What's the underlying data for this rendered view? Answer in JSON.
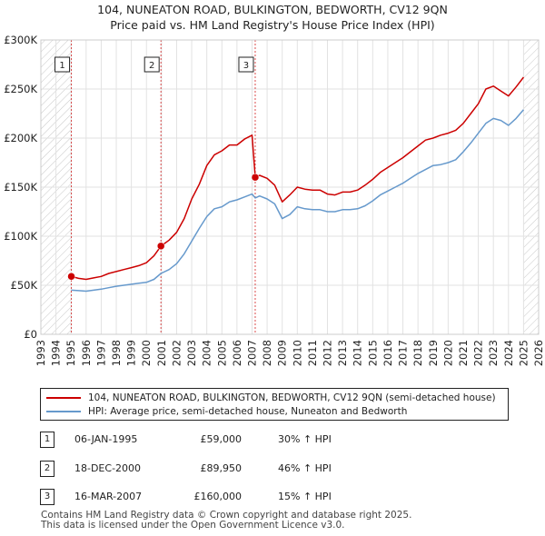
{
  "title": {
    "line1": "104, NUNEATON ROAD, BULKINGTON, BEDWORTH, CV12 9QN",
    "line2": "Price paid vs. HM Land Registry's House Price Index (HPI)"
  },
  "chart_data": {
    "type": "line",
    "title": "Price paid vs. HM Land Registry's House Price Index (HPI)",
    "xlabel": "",
    "ylabel": "",
    "xlim": [
      1993,
      2026
    ],
    "ylim": [
      0,
      300000
    ],
    "x_ticks": [
      "1993",
      "1994",
      "1995",
      "1996",
      "1997",
      "1998",
      "1999",
      "2000",
      "2001",
      "2002",
      "2003",
      "2004",
      "2005",
      "2006",
      "2007",
      "2008",
      "2009",
      "2010",
      "2011",
      "2012",
      "2013",
      "2014",
      "2015",
      "2016",
      "2017",
      "2018",
      "2019",
      "2020",
      "2021",
      "2022",
      "2023",
      "2024",
      "2025",
      "2026"
    ],
    "y_ticks": [
      {
        "value": 0,
        "label": "£0"
      },
      {
        "value": 50000,
        "label": "£50K"
      },
      {
        "value": 100000,
        "label": "£100K"
      },
      {
        "value": 150000,
        "label": "£150K"
      },
      {
        "value": 200000,
        "label": "£200K"
      },
      {
        "value": 250000,
        "label": "£250K"
      },
      {
        "value": 300000,
        "label": "£300K"
      }
    ],
    "grid": true,
    "hatched_ranges": [
      [
        1993,
        1995.02
      ],
      [
        2025.0,
        2026
      ]
    ],
    "series": [
      {
        "name": "104, NUNEATON ROAD, BULKINGTON, BEDWORTH, CV12 9QN (semi-detached house)",
        "color": "#cc0000",
        "x": [
          1995.02,
          1995.5,
          1996,
          1996.5,
          1997,
          1997.5,
          1998,
          1998.5,
          1999,
          1999.5,
          2000,
          2000.5,
          2000.96,
          2001.5,
          2002,
          2002.5,
          2003,
          2003.5,
          2004,
          2004.5,
          2005,
          2005.5,
          2006,
          2006.5,
          2007.0,
          2007.21,
          2007.5,
          2008,
          2008.5,
          2009,
          2009.5,
          2010,
          2010.5,
          2011,
          2011.5,
          2012,
          2012.5,
          2013,
          2013.5,
          2014,
          2014.5,
          2015,
          2015.5,
          2016,
          2016.5,
          2017,
          2017.5,
          2018,
          2018.5,
          2019,
          2019.5,
          2020,
          2020.5,
          2021,
          2021.5,
          2022,
          2022.5,
          2023,
          2023.5,
          2024,
          2024.5,
          2025.0
        ],
        "y": [
          59000,
          57000,
          56000,
          57500,
          59000,
          62000,
          64000,
          66000,
          68000,
          70000,
          73000,
          80000,
          89950,
          96000,
          104000,
          118000,
          138000,
          153000,
          172000,
          183000,
          187000,
          193000,
          193000,
          199000,
          203000,
          160000,
          162000,
          159000,
          152000,
          135000,
          142000,
          150000,
          148000,
          147000,
          147000,
          143000,
          142000,
          145000,
          145000,
          147000,
          152000,
          158000,
          165000,
          170000,
          175000,
          180000,
          186000,
          192000,
          198000,
          200000,
          203000,
          205000,
          208000,
          215000,
          225000,
          235000,
          250000,
          253000,
          248000,
          243000,
          252000,
          262000
        ]
      },
      {
        "name": "HPI: Average price, semi-detached house, Nuneaton and Bedworth",
        "color": "#6699cc",
        "x": [
          1995.02,
          1995.5,
          1996,
          1996.5,
          1997,
          1997.5,
          1998,
          1998.5,
          1999,
          1999.5,
          2000,
          2000.5,
          2000.96,
          2001.5,
          2002,
          2002.5,
          2003,
          2003.5,
          2004,
          2004.5,
          2005,
          2005.5,
          2006,
          2006.5,
          2007.0,
          2007.21,
          2007.5,
          2008,
          2008.5,
          2009,
          2009.5,
          2010,
          2010.5,
          2011,
          2011.5,
          2012,
          2012.5,
          2013,
          2013.5,
          2014,
          2014.5,
          2015,
          2015.5,
          2016,
          2016.5,
          2017,
          2017.5,
          2018,
          2018.5,
          2019,
          2019.5,
          2020,
          2020.5,
          2021,
          2021.5,
          2022,
          2022.5,
          2023,
          2023.5,
          2024,
          2024.5,
          2025.0
        ],
        "y": [
          45000,
          44500,
          44000,
          45000,
          46000,
          47500,
          49000,
          50000,
          51000,
          52000,
          53000,
          56000,
          62000,
          66000,
          72000,
          82000,
          95000,
          108000,
          120000,
          128000,
          130000,
          135000,
          137000,
          140000,
          143000,
          139000,
          141000,
          138000,
          133000,
          118000,
          122000,
          130000,
          128000,
          127000,
          127000,
          125000,
          125000,
          127000,
          127000,
          128000,
          131000,
          136000,
          142000,
          146000,
          150000,
          154000,
          159000,
          164000,
          168000,
          172000,
          173000,
          175000,
          178000,
          186000,
          195000,
          205000,
          215000,
          220000,
          218000,
          213000,
          220000,
          229000
        ]
      }
    ],
    "annotations": [
      {
        "label": "1",
        "x": 1995.02,
        "y": 59000,
        "box_y": 275000
      },
      {
        "label": "2",
        "x": 2000.96,
        "y": 89950,
        "box_y": 275000
      },
      {
        "label": "3",
        "x": 2007.21,
        "y": 160000,
        "box_y": 275000
      }
    ]
  },
  "legend": {
    "property": "104, NUNEATON ROAD, BULKINGTON, BEDWORTH, CV12 9QN (semi-detached house)",
    "hpi": "HPI: Average price, semi-detached house, Nuneaton and Bedworth",
    "property_color": "#cc0000",
    "hpi_color": "#6699cc"
  },
  "transactions": [
    {
      "num": "1",
      "date": "06-JAN-1995",
      "price": "£59,000",
      "hpi": "30% ↑ HPI"
    },
    {
      "num": "2",
      "date": "18-DEC-2000",
      "price": "£89,950",
      "hpi": "46% ↑ HPI"
    },
    {
      "num": "3",
      "date": "16-MAR-2007",
      "price": "£160,000",
      "hpi": "15% ↑ HPI"
    }
  ],
  "footer": {
    "line1": "Contains HM Land Registry data © Crown copyright and database right 2025.",
    "line2": "This data is licensed under the Open Government Licence v3.0."
  }
}
